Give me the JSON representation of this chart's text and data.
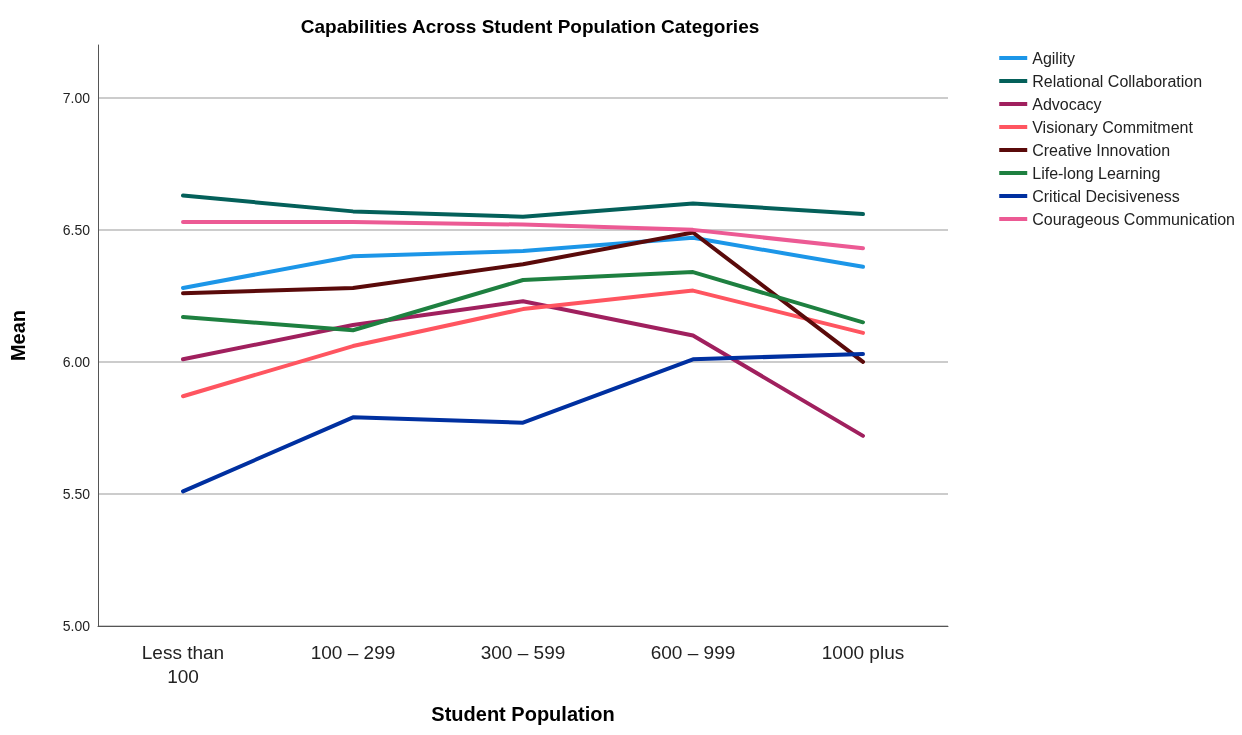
{
  "chart_data": {
    "type": "line",
    "title": "Capabilities Across Student Population Categories",
    "xlabel": "Student Population",
    "ylabel": "Mean",
    "categories": [
      "Less than\n100",
      "100 – 299",
      "300 – 599",
      "600 – 999",
      "1000 plus"
    ],
    "series": [
      {
        "name": "Agility",
        "color": "#1c96e8",
        "values": [
          6.28,
          6.4,
          6.42,
          6.47,
          6.36
        ]
      },
      {
        "name": "Relational Collaboration",
        "color": "#04605a",
        "values": [
          6.63,
          6.57,
          6.55,
          6.6,
          6.56
        ]
      },
      {
        "name": "Advocacy",
        "color": "#a0205e",
        "values": [
          6.01,
          6.14,
          6.23,
          6.1,
          5.72
        ]
      },
      {
        "name": "Visionary Commitment",
        "color": "#ff5560",
        "values": [
          5.87,
          6.06,
          6.2,
          6.27,
          6.11
        ]
      },
      {
        "name": "Creative Innovation",
        "color": "#5a0a0a",
        "values": [
          6.26,
          6.28,
          6.37,
          6.49,
          6.0
        ]
      },
      {
        "name": "Life-long Learning",
        "color": "#1e8040",
        "values": [
          6.17,
          6.12,
          6.31,
          6.34,
          6.15
        ]
      },
      {
        "name": "Critical Decisiveness",
        "color": "#0030a0",
        "values": [
          5.51,
          5.79,
          5.77,
          6.01,
          6.03
        ]
      },
      {
        "name": "Courageous Communication",
        "color": "#ec5a94",
        "values": [
          6.53,
          6.53,
          6.52,
          6.5,
          6.43
        ]
      }
    ],
    "ylim": [
      5,
      7.2
    ],
    "yticks": [
      {
        "value": 5,
        "label": "5.00"
      },
      {
        "value": 5.5,
        "label": "5.50"
      },
      {
        "value": 6,
        "label": "6.00"
      },
      {
        "value": 6.5,
        "label": "6.50"
      },
      {
        "value": 7,
        "label": "7.00"
      }
    ],
    "grid": "y",
    "legend": "top right",
    "marker": "none",
    "line_style": "solid"
  }
}
